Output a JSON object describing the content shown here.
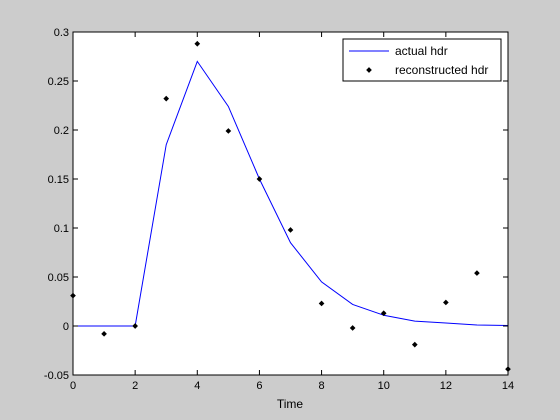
{
  "chart_data": {
    "type": "line",
    "title": "",
    "xlabel": "Time",
    "ylabel": "",
    "xlim": [
      0,
      14
    ],
    "ylim": [
      -0.05,
      0.3
    ],
    "xticks": [
      0,
      2,
      4,
      6,
      8,
      10,
      12,
      14
    ],
    "yticks": [
      -0.05,
      0,
      0.05,
      0.1,
      0.15,
      0.2,
      0.25,
      0.3
    ],
    "xtick_labels": [
      "0",
      "2",
      "4",
      "6",
      "8",
      "10",
      "12",
      "14"
    ],
    "ytick_labels": [
      "-0.05",
      "0",
      "0.05",
      "0.1",
      "0.15",
      "0.2",
      "0.25",
      "0.3"
    ],
    "grid": false,
    "legend_position": "top-right",
    "series": [
      {
        "name": "actual hdr",
        "style": "line",
        "color": "#0000ff",
        "x": [
          0,
          1,
          2,
          3,
          4,
          5,
          6,
          7,
          8,
          9,
          10,
          11,
          12,
          13,
          14
        ],
        "y": [
          0,
          0,
          0,
          0.185,
          0.27,
          0.224,
          0.15,
          0.085,
          0.045,
          0.022,
          0.011,
          0.005,
          0.003,
          0.001,
          0.0005
        ]
      },
      {
        "name": "reconstructed hdr",
        "style": "markers",
        "color": "#000000",
        "x": [
          0,
          1,
          2,
          3,
          4,
          5,
          6,
          7,
          8,
          9,
          10,
          11,
          12,
          13,
          14
        ],
        "y": [
          0.031,
          -0.008,
          0,
          0.232,
          0.288,
          0.199,
          0.15,
          0.098,
          0.023,
          -0.002,
          0.013,
          -0.019,
          0.024,
          0.054,
          -0.044
        ]
      }
    ]
  }
}
